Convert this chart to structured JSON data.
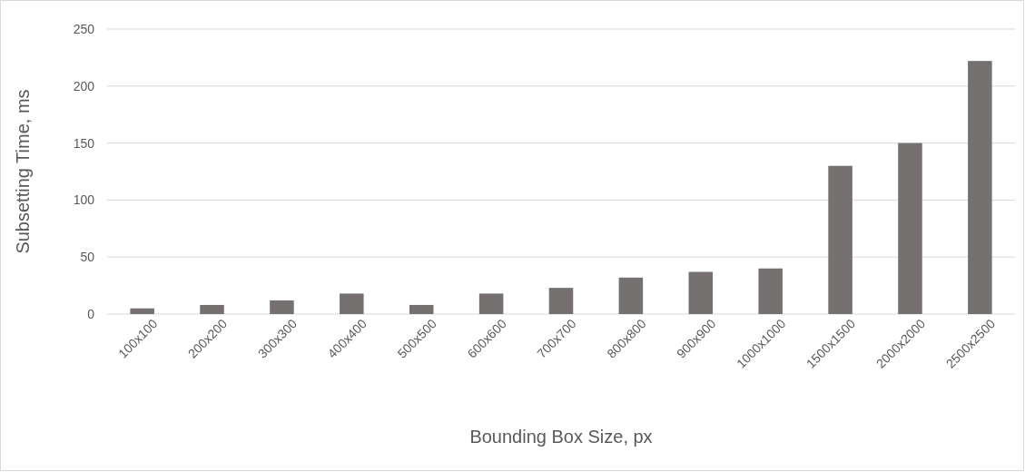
{
  "chart_data": {
    "type": "bar",
    "xlabel": "Bounding Box Size, px",
    "ylabel": "Subsetting Time, ms",
    "categories": [
      "100x100",
      "200x200",
      "300x300",
      "400x400",
      "500x500",
      "600x600",
      "700x700",
      "800x800",
      "900x900",
      "1000x1000",
      "1500x1500",
      "2000x2000",
      "2500x2500"
    ],
    "values": [
      5,
      8,
      12,
      18,
      8,
      18,
      23,
      32,
      37,
      40,
      130,
      150,
      222
    ],
    "color": "#767171",
    "ylim": [
      0,
      250
    ],
    "yticks": [
      0,
      50,
      100,
      150,
      200,
      250
    ],
    "grid": "y"
  }
}
